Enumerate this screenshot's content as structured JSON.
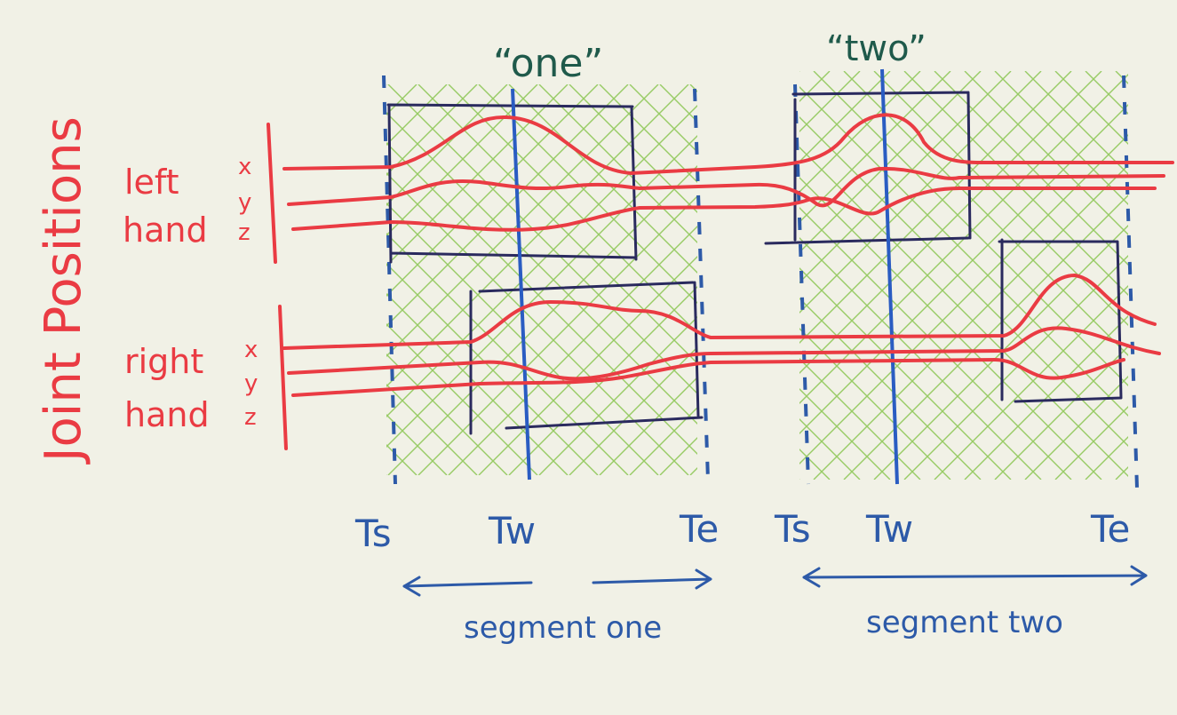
{
  "y_axis_label": "Joint Positions",
  "left_hand": {
    "label_line1": "left",
    "label_line2": "hand",
    "coords": [
      "x",
      "y",
      "z"
    ]
  },
  "right_hand": {
    "label_line1": "right",
    "label_line2": "hand",
    "coords": [
      "x",
      "y",
      "z"
    ]
  },
  "words": [
    "“one”",
    "“two”"
  ],
  "time_markers": [
    "Ts",
    "Tw",
    "Te",
    "Ts",
    "Tw",
    "Te"
  ],
  "segments": [
    "segment one",
    "segment two"
  ],
  "colors": {
    "paper": "#f1f1e6",
    "signal": "#ea3b43",
    "marker": "#2d5aa8",
    "box": "#2a2a5e",
    "hatch": "#7bbf3a",
    "word": "#1f5a4b"
  }
}
